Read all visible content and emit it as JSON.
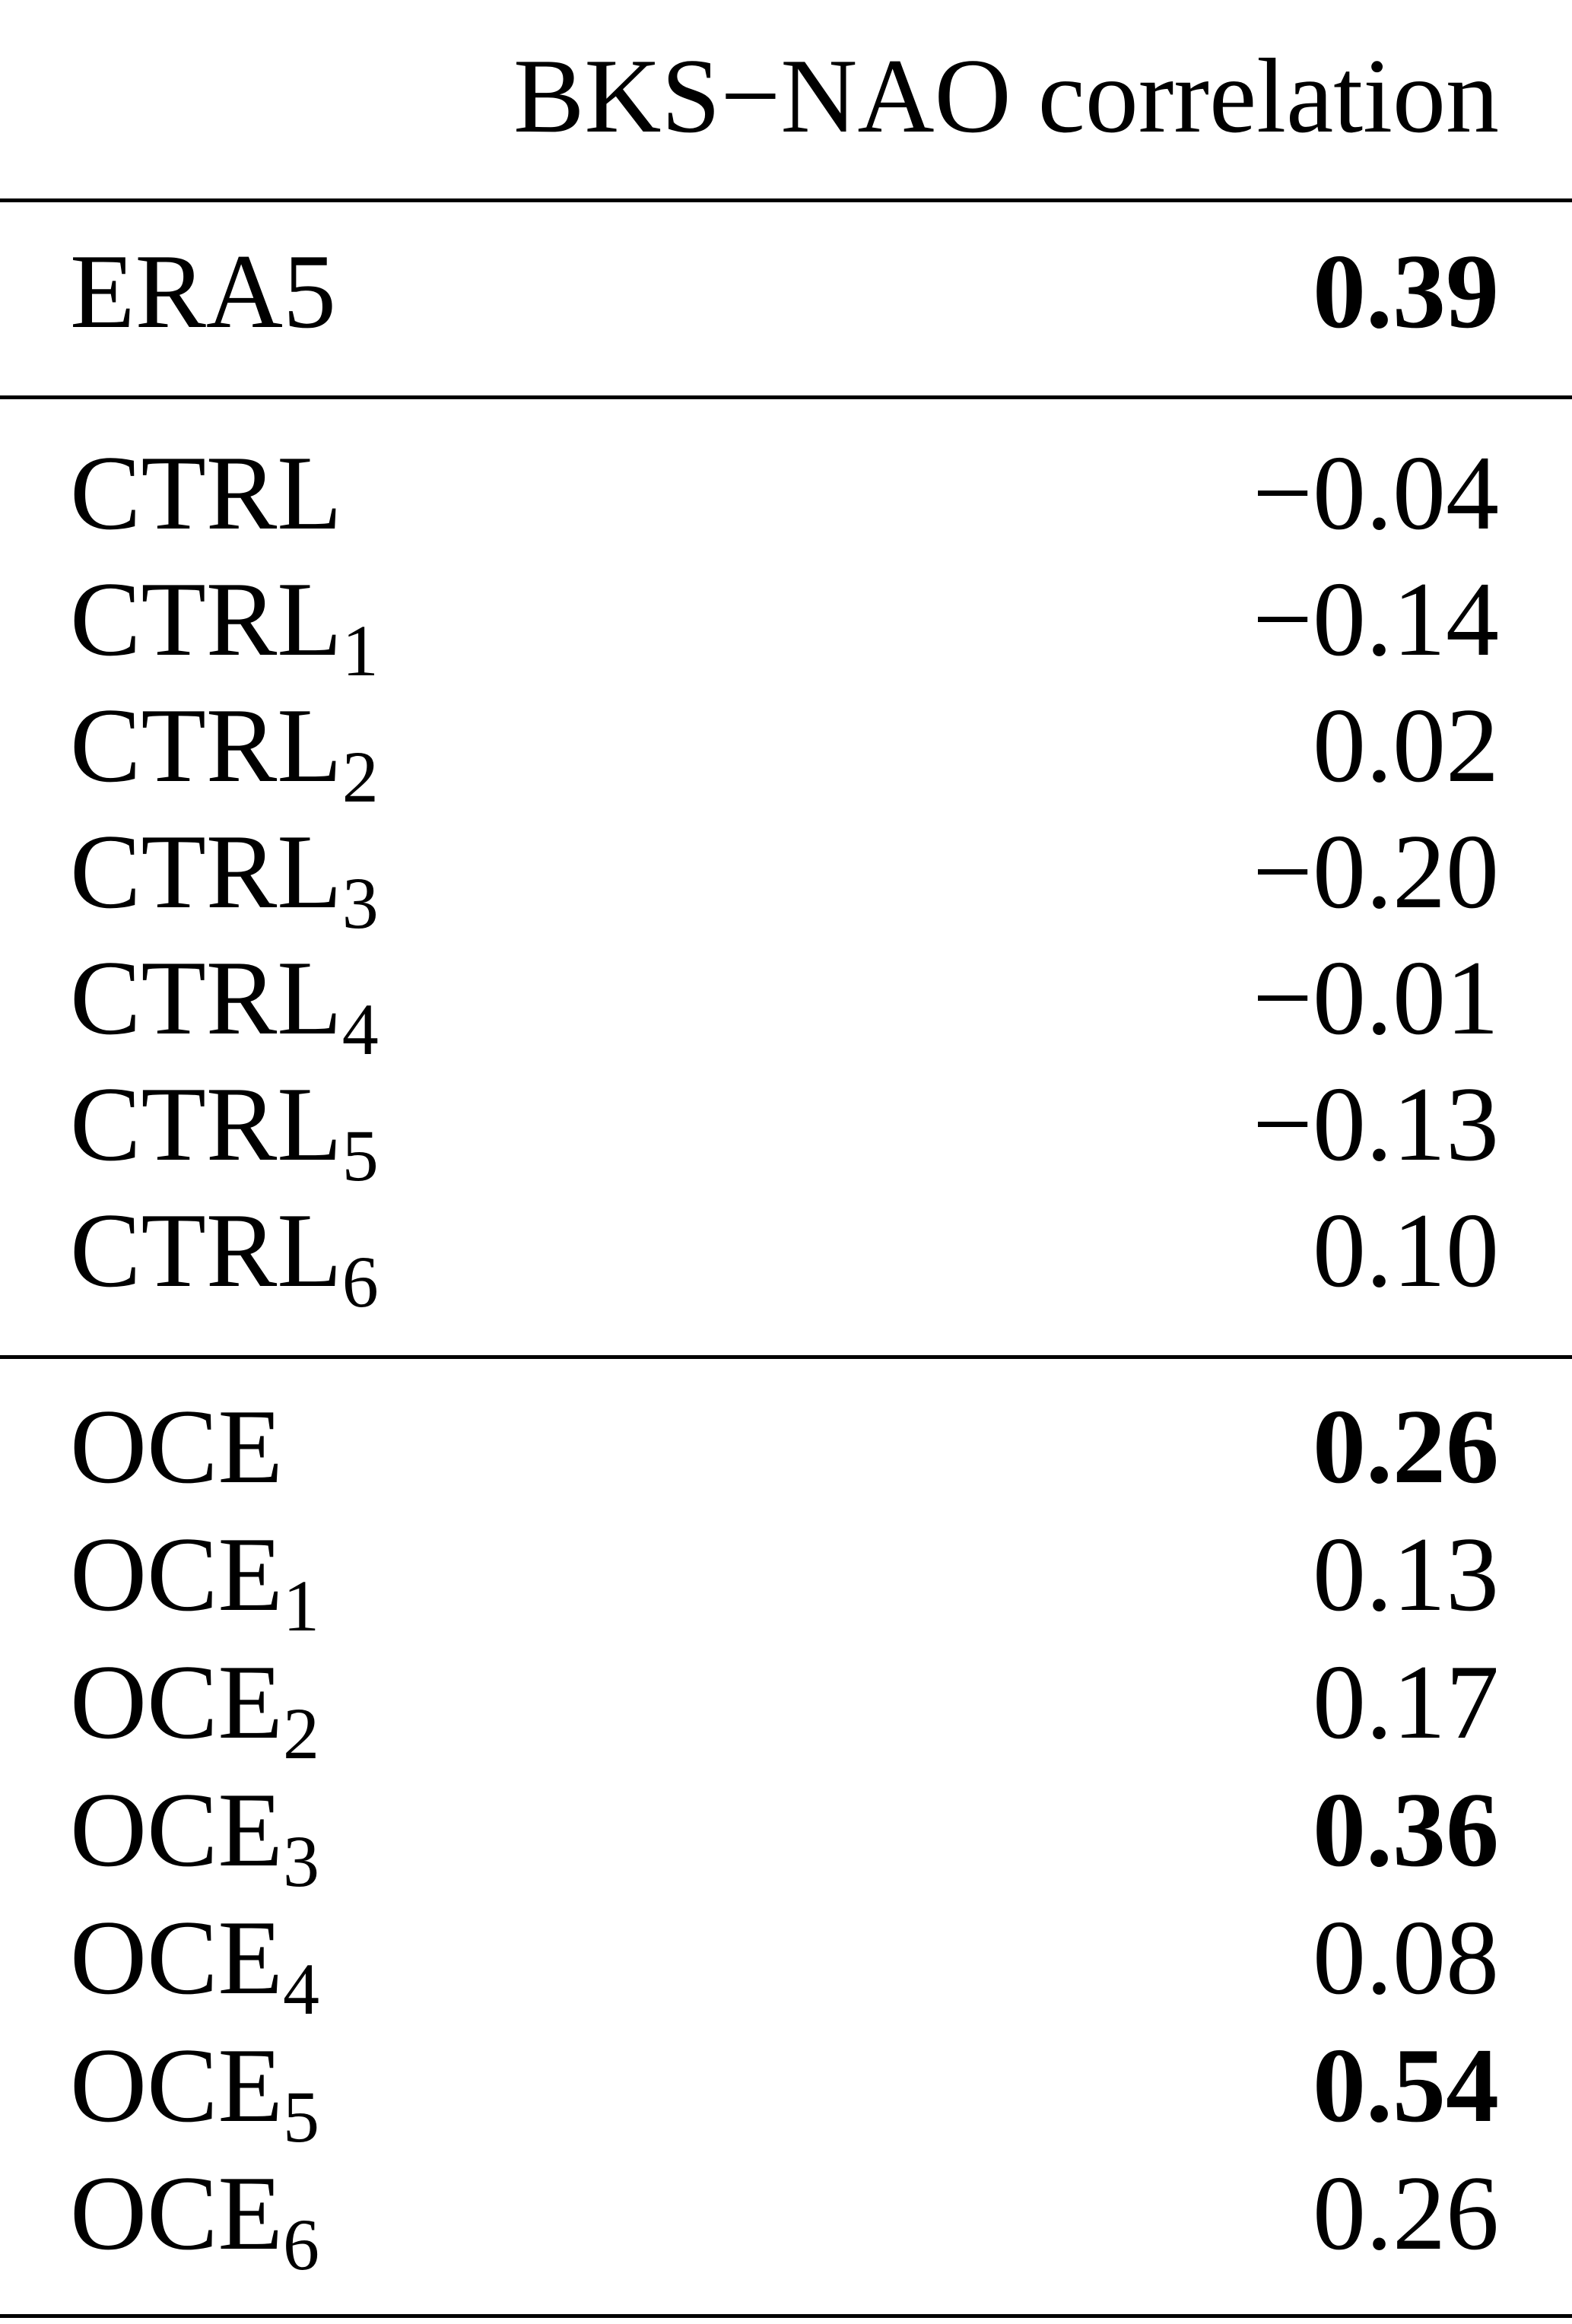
{
  "header": {
    "column": "BKS−NAO correlation"
  },
  "groups": [
    {
      "rows": [
        {
          "name": "ERA5",
          "sub": "",
          "value": "0.39",
          "bold": true
        }
      ]
    },
    {
      "rows": [
        {
          "name": "CTRL",
          "sub": "",
          "value": "−0.04",
          "bold": false
        },
        {
          "name": "CTRL",
          "sub": "1",
          "value": "−0.14",
          "bold": false
        },
        {
          "name": "CTRL",
          "sub": "2",
          "value": "0.02",
          "bold": false
        },
        {
          "name": "CTRL",
          "sub": "3",
          "value": "−0.20",
          "bold": false
        },
        {
          "name": "CTRL",
          "sub": "4",
          "value": "−0.01",
          "bold": false
        },
        {
          "name": "CTRL",
          "sub": "5",
          "value": "−0.13",
          "bold": false
        },
        {
          "name": "CTRL",
          "sub": "6",
          "value": "0.10",
          "bold": false
        }
      ]
    },
    {
      "rows": [
        {
          "name": "OCE",
          "sub": "",
          "value": "0.26",
          "bold": true
        },
        {
          "name": "OCE",
          "sub": "1",
          "value": "0.13",
          "bold": false
        },
        {
          "name": "OCE",
          "sub": "2",
          "value": "0.17",
          "bold": false
        },
        {
          "name": "OCE",
          "sub": "3",
          "value": "0.36",
          "bold": true
        },
        {
          "name": "OCE",
          "sub": "4",
          "value": "0.08",
          "bold": false
        },
        {
          "name": "OCE",
          "sub": "5",
          "value": "0.54",
          "bold": true
        },
        {
          "name": "OCE",
          "sub": "6",
          "value": "0.26",
          "bold": false
        }
      ]
    }
  ]
}
